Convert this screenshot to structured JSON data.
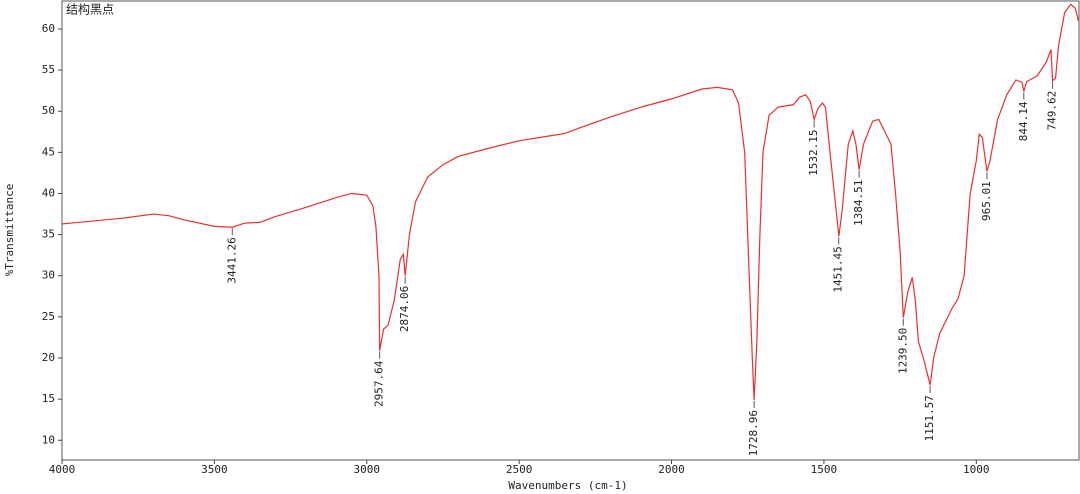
{
  "chart_data": {
    "type": "line",
    "title": "结构黑点",
    "xlabel": "Wavenumbers (cm-1)",
    "ylabel": "%Transmittance",
    "xlim": [
      4000,
      663
    ],
    "ylim": [
      7.6,
      63.4
    ],
    "xticks": [
      4000,
      3500,
      3000,
      2500,
      2000,
      1500,
      1000
    ],
    "yticks": [
      10,
      15,
      20,
      25,
      30,
      35,
      40,
      45,
      50,
      55,
      60
    ],
    "x": [
      4000,
      3800,
      3700,
      3650,
      3600,
      3500,
      3441,
      3400,
      3350,
      3300,
      3200,
      3100,
      3050,
      3000,
      2980,
      2970,
      2960,
      2957.64,
      2945,
      2930,
      2910,
      2890,
      2880,
      2874,
      2860,
      2840,
      2800,
      2750,
      2700,
      2600,
      2500,
      2400,
      2350,
      2300,
      2200,
      2100,
      2000,
      1900,
      1850,
      1800,
      1780,
      1760,
      1745,
      1735,
      1728.96,
      1720,
      1710,
      1700,
      1680,
      1650,
      1600,
      1580,
      1560,
      1545,
      1532,
      1520,
      1505,
      1495,
      1480,
      1460,
      1451,
      1440,
      1420,
      1405,
      1395,
      1384.5,
      1370,
      1340,
      1320,
      1300,
      1280,
      1265,
      1250,
      1239.5,
      1225,
      1210,
      1200,
      1190,
      1170,
      1151.57,
      1140,
      1120,
      1080,
      1060,
      1040,
      1020,
      1000,
      990,
      980,
      970,
      965,
      955,
      930,
      900,
      870,
      850,
      844,
      835,
      800,
      770,
      755,
      749.6,
      740,
      730,
      710,
      690,
      675,
      665
    ],
    "series": [
      {
        "color": "#e8302e",
        "values": [
          36.3,
          37.0,
          37.5,
          37.3,
          36.8,
          36.0,
          35.9,
          36.4,
          36.5,
          37.2,
          38.3,
          39.5,
          40.0,
          39.8,
          38.5,
          36,
          30,
          20.9,
          23.5,
          24,
          27,
          32,
          32.6,
          30.0,
          35,
          39,
          42,
          43.5,
          44.5,
          45.5,
          46.4,
          47.0,
          47.3,
          48,
          49.3,
          50.5,
          51.5,
          52.7,
          52.9,
          52.6,
          51,
          45,
          30,
          20,
          14.9,
          22,
          35,
          45,
          49.5,
          50.5,
          50.8,
          51.7,
          52,
          51.2,
          49.0,
          50.3,
          51,
          50.5,
          45,
          38,
          34.8,
          38,
          46,
          47.6,
          46,
          42.9,
          46,
          48.8,
          49,
          47.5,
          46,
          40,
          33,
          24.9,
          28,
          29.8,
          27,
          22,
          19.5,
          16.7,
          20,
          23,
          26,
          27.2,
          30,
          40,
          44,
          47.2,
          46.8,
          44,
          42.7,
          44,
          49,
          52,
          53.8,
          53.5,
          52.4,
          53.6,
          54.3,
          56,
          57.5,
          53.7,
          54,
          58,
          62,
          63,
          62.5,
          61
        ]
      }
    ],
    "peaks": [
      {
        "x": 3441.26,
        "y": 35.9
      },
      {
        "x": 2957.64,
        "y": 20.9
      },
      {
        "x": 2874.06,
        "y": 30.0
      },
      {
        "x": 1728.96,
        "y": 14.9
      },
      {
        "x": 1532.15,
        "y": 49.0
      },
      {
        "x": 1451.45,
        "y": 34.8
      },
      {
        "x": 1384.51,
        "y": 42.9
      },
      {
        "x": {
          "value": 1239.5,
          "label": "1239.50"
        },
        "y": 24.9
      },
      {
        "x": 1151.57,
        "y": 16.7
      },
      {
        "x": 965.01,
        "y": 42.7
      },
      {
        "x": 844.14,
        "y": 52.4
      },
      {
        "x": 749.62,
        "y": 53.7
      }
    ]
  }
}
